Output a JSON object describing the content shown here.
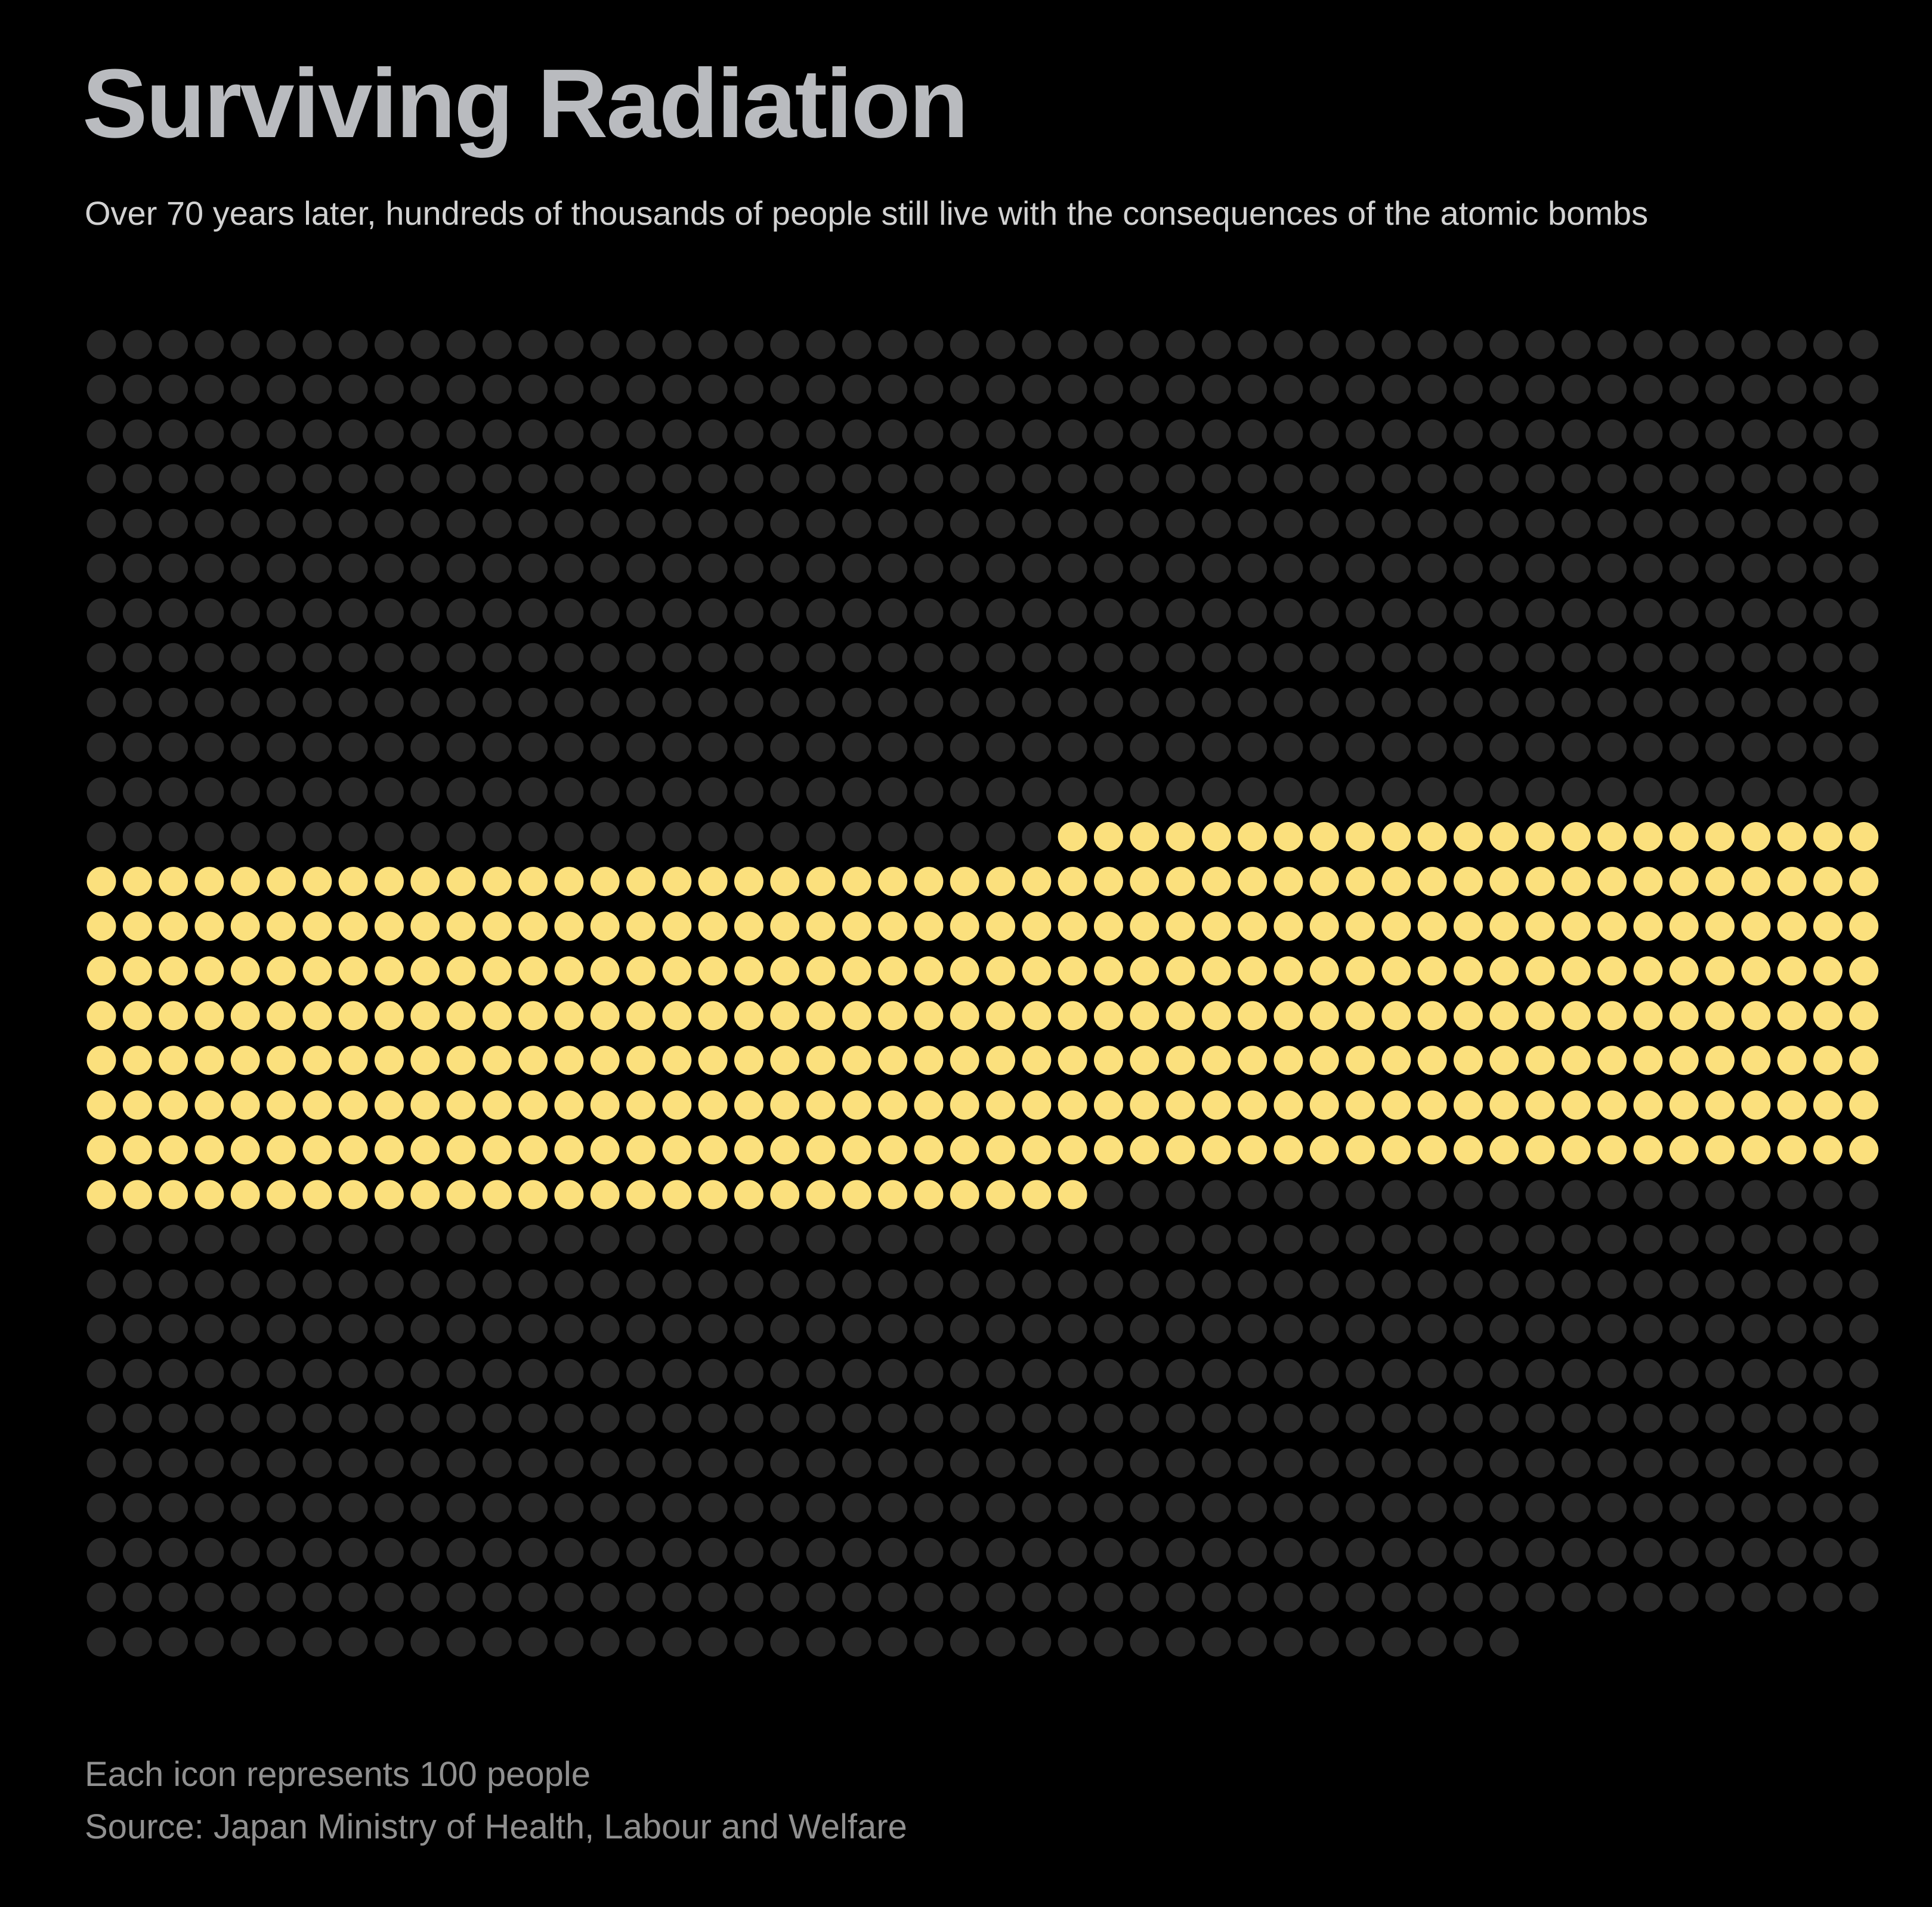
{
  "chart_data": {
    "type": "waffle",
    "title": "Surviving Radiation",
    "subtitle": "Over 70 years later, hundreds of thousands of people still live with the consequences of the atomic bombs",
    "unit_note": "Each icon represents 100 people",
    "source": "Source: Japan Ministry of Health, Labour and Welfare",
    "people_per_icon": 100,
    "columns": 50,
    "rows": 30,
    "total_icons": 1490,
    "filled_start_index": 577,
    "highlighted_icons": 401,
    "series": [
      {
        "icons": 577,
        "color": "#282828"
      },
      {
        "icons": 401,
        "color": "#fbe07d"
      },
      {
        "icons": 512,
        "color": "#282828"
      }
    ]
  },
  "colors": {
    "background": "#000000",
    "title": "#b9bbbf",
    "subtitle": "#d2d2d2",
    "footnote": "#909090",
    "dot_inactive": "#282828",
    "dot_active": "#fbe07d"
  }
}
